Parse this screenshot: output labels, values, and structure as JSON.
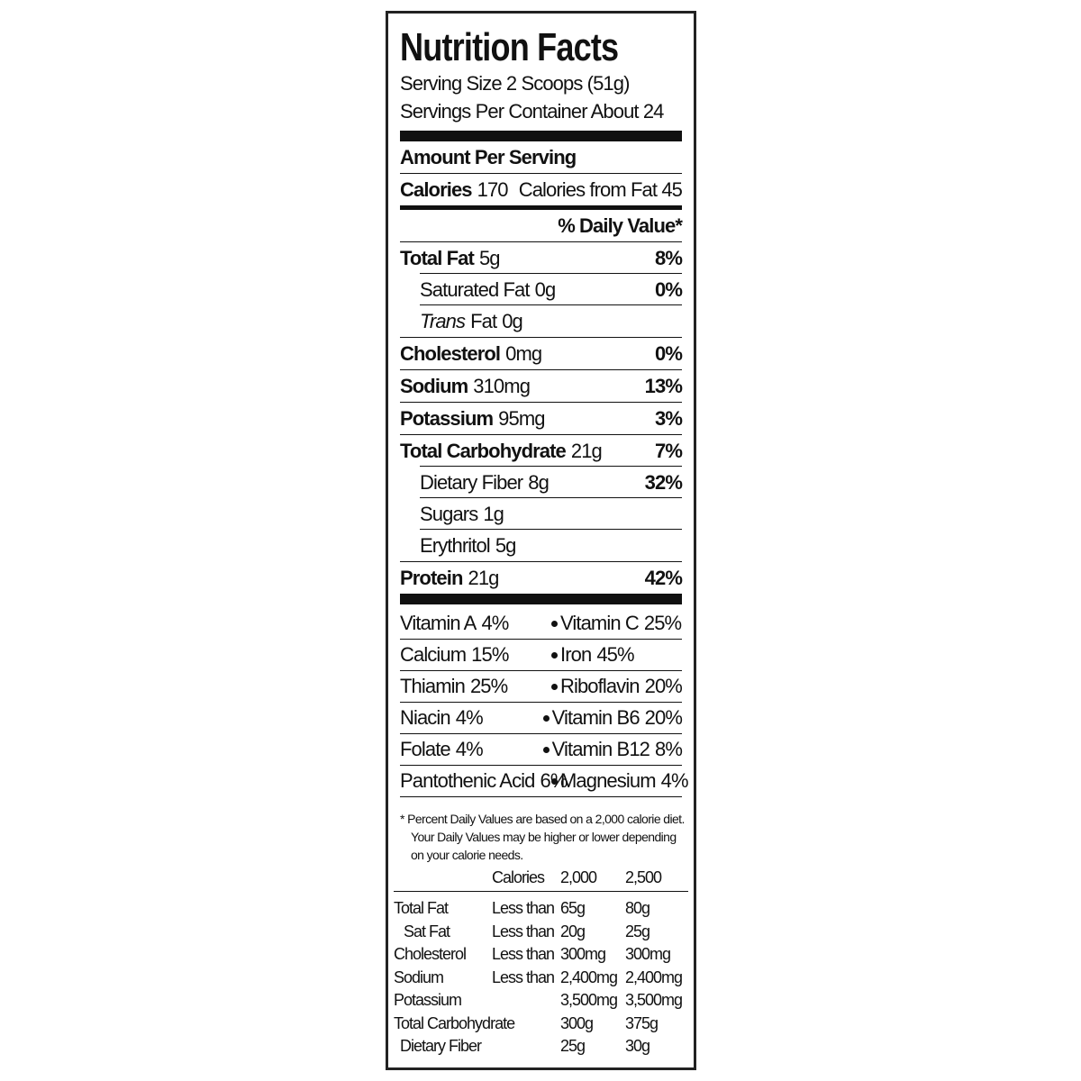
{
  "title": "Nutrition Facts",
  "serving_size": "Serving Size 2 Scoops (51g)",
  "servings_per_container": "Servings Per Container About 24",
  "amount_per_serving": "Amount Per Serving",
  "calories": {
    "label": "Calories",
    "value": "170",
    "from_fat": "Calories from Fat 45"
  },
  "daily_value_header": "% Daily Value*",
  "nutrients": [
    {
      "name": "Total Fat",
      "amount": "5g",
      "dv": "8%",
      "indent": false
    },
    {
      "name": "Saturated Fat",
      "amount": "0g",
      "dv": "0%",
      "indent": true
    },
    {
      "name_italic": "Trans",
      "name": "Fat",
      "amount": "0g",
      "indent": true
    },
    {
      "name": "Cholesterol",
      "amount": "0mg",
      "dv": "0%",
      "indent": false
    },
    {
      "name": "Sodium",
      "amount": "310mg",
      "dv": "13%",
      "indent": false
    },
    {
      "name": "Potassium",
      "amount": "95mg",
      "dv": "3%",
      "indent": false
    },
    {
      "name": "Total Carbohydrate",
      "amount": "21g",
      "dv": "7%",
      "indent": false
    },
    {
      "name": "Dietary Fiber",
      "amount": "8g",
      "dv": "32%",
      "indent": true
    },
    {
      "name": "Sugars",
      "amount": "1g",
      "indent": true
    },
    {
      "name": "Erythritol",
      "amount": "5g",
      "indent": true
    },
    {
      "name": "Protein",
      "amount": "21g",
      "dv": "42%",
      "indent": false
    }
  ],
  "vitamins": [
    [
      {
        "name": "Vitamin A",
        "dv": "4%"
      },
      {
        "name": "Vitamin C",
        "dv": "25%"
      }
    ],
    [
      {
        "name": "Calcium",
        "dv": "15%"
      },
      {
        "name": "Iron",
        "dv": "45%"
      }
    ],
    [
      {
        "name": "Thiamin",
        "dv": "25%"
      },
      {
        "name": "Riboflavin",
        "dv": "20%"
      }
    ],
    [
      {
        "name": "Niacin",
        "dv": "4%"
      },
      {
        "name": "Vitamin B6",
        "dv": "20%"
      }
    ],
    [
      {
        "name": "Folate",
        "dv": "4%"
      },
      {
        "name": "Vitamin B12",
        "dv": "8%"
      }
    ],
    [
      {
        "name": "Pantothenic Acid",
        "dv": "6%"
      },
      {
        "name": "Magnesium",
        "dv": "4%"
      }
    ]
  ],
  "footnote": [
    "* Percent Daily Values are based on a 2,000 calorie diet.",
    "Your Daily Values may be higher or lower depending",
    "on your calorie needs."
  ],
  "reference_table": {
    "header": [
      "Calories",
      "2,000",
      "2,500"
    ],
    "rows": [
      [
        "Total Fat",
        "Less than",
        "65g",
        "80g"
      ],
      [
        "Sat Fat",
        "Less than",
        "20g",
        "25g"
      ],
      [
        "Cholesterol",
        "Less than",
        "300mg",
        "300mg"
      ],
      [
        "Sodium",
        "Less than",
        "2,400mg",
        "2,400mg"
      ],
      [
        "Potassium",
        null,
        "3,500mg",
        "3,500mg"
      ],
      [
        "Total Carbohydrate",
        null,
        "300g",
        "375g"
      ],
      [
        "Dietary Fiber",
        null,
        "25g",
        "30g"
      ]
    ]
  }
}
